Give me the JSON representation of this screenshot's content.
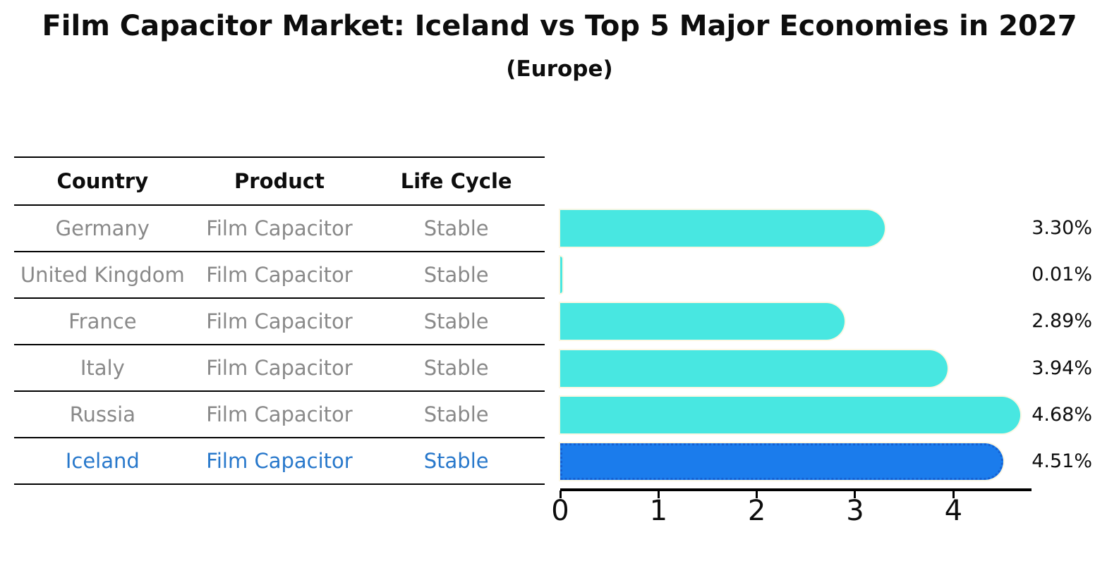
{
  "title": "Film Capacitor Market: Iceland vs Top 5 Major Economies in 2027",
  "subtitle": "(Europe)",
  "table": {
    "headers": [
      "Country",
      "Product",
      "Life Cycle"
    ],
    "rows": [
      {
        "country": "Germany",
        "product": "Film Capacitor",
        "life_cycle": "Stable",
        "highlight": false
      },
      {
        "country": "United Kingdom",
        "product": "Film Capacitor",
        "life_cycle": "Stable",
        "highlight": false
      },
      {
        "country": "France",
        "product": "Film Capacitor",
        "life_cycle": "Stable",
        "highlight": false
      },
      {
        "country": "Italy",
        "product": "Film Capacitor",
        "life_cycle": "Stable",
        "highlight": false
      },
      {
        "country": "Russia",
        "product": "Film Capacitor",
        "life_cycle": "Stable",
        "highlight": false
      },
      {
        "country": "Iceland",
        "product": "Film Capacitor",
        "life_cycle": "Stable",
        "highlight": true
      }
    ]
  },
  "chart_data": {
    "type": "bar",
    "orientation": "horizontal",
    "title": "Film Capacitor Market: Iceland vs Top 5 Major Economies in 2027 (Europe)",
    "categories": [
      "Germany",
      "United Kingdom",
      "France",
      "Italy",
      "Russia",
      "Iceland"
    ],
    "values": [
      3.3,
      0.01,
      2.89,
      3.94,
      4.68,
      4.51
    ],
    "value_labels": [
      "3.30%",
      "0.01%",
      "2.89%",
      "3.94%",
      "4.68%",
      "4.51%"
    ],
    "highlight_index": 5,
    "xlim": [
      0,
      4.78
    ],
    "xticks": [
      "0",
      "1",
      "2",
      "3",
      "4"
    ],
    "xlabel": "",
    "ylabel": "",
    "grid": false,
    "legend": "none",
    "bar_color": "#48e7e1",
    "highlight_bar_color": "#1b7cec",
    "highlight_text_color": "#2878cb",
    "body_text_color": "#898989"
  }
}
